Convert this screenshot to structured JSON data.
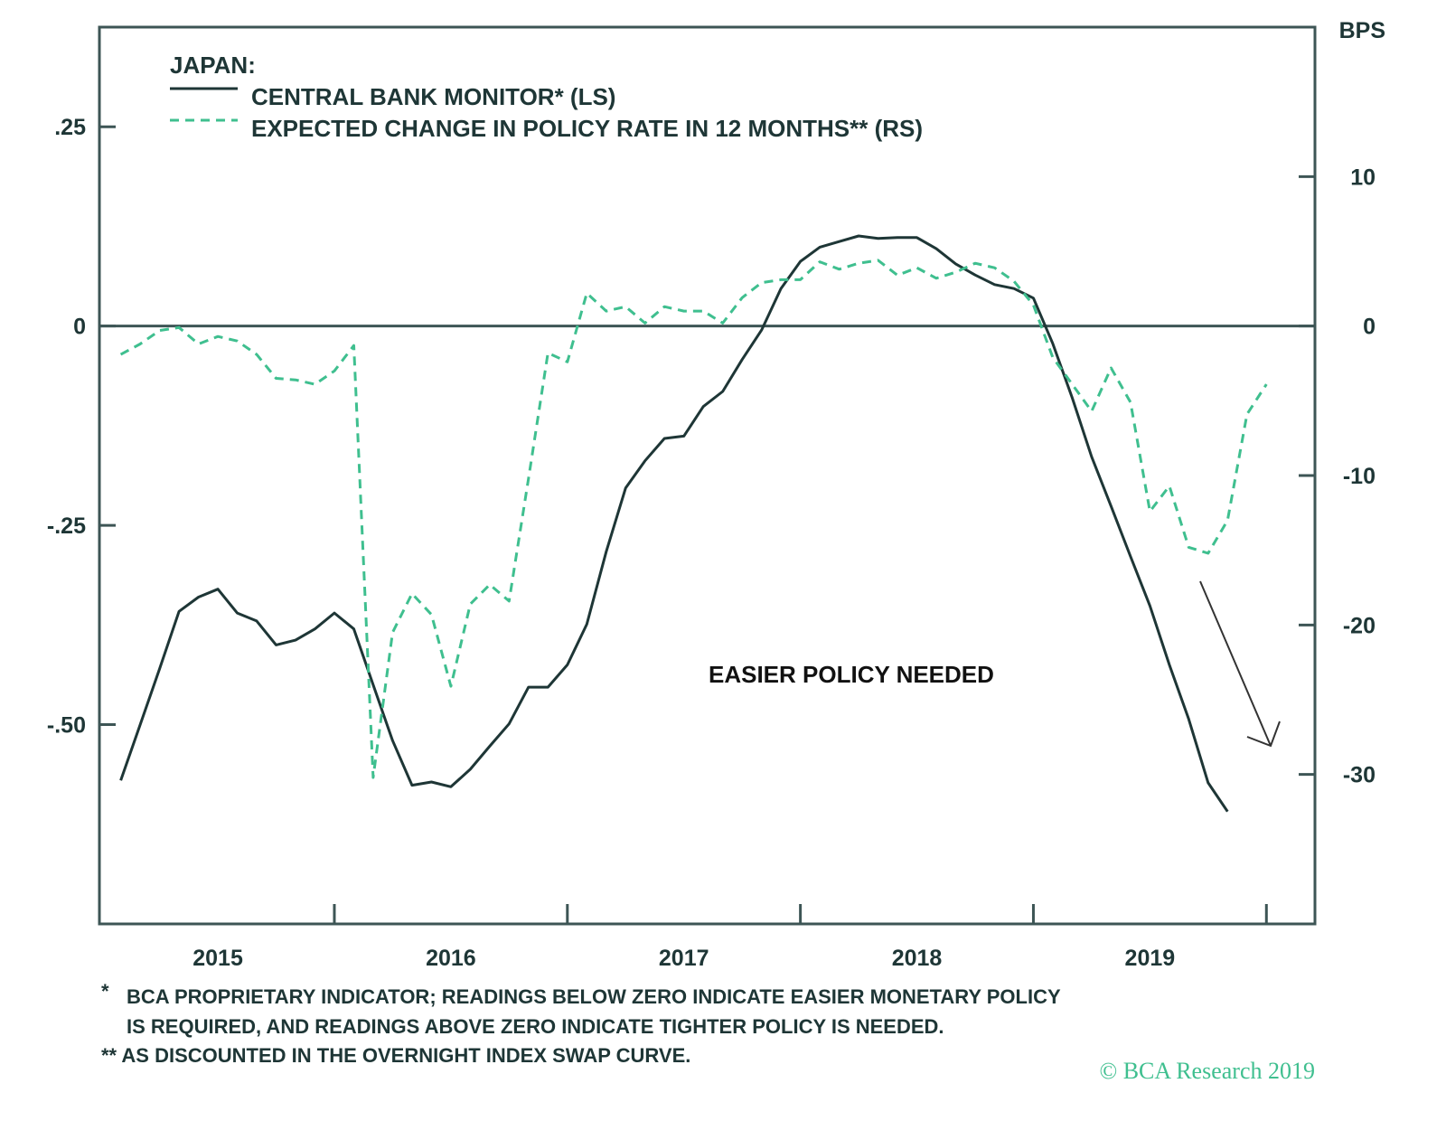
{
  "chart_data": {
    "type": "line",
    "legend_title": "JAPAN:",
    "legend_placement": "top-left",
    "right_axis_unit": "BPS",
    "annotation": "EASIER POLICY NEEDED",
    "x_tick_labels": [
      "2015",
      "2016",
      "2017",
      "2018",
      "2019"
    ],
    "left_axis": {
      "ticks": [
        0.25,
        0,
        -0.25,
        -0.5
      ],
      "tick_labels": [
        ".25",
        "0",
        "-.25",
        "-.50"
      ],
      "ylim": [
        -0.75,
        0.375
      ]
    },
    "right_axis": {
      "ticks": [
        10,
        0,
        -10,
        -20,
        -30
      ],
      "tick_labels": [
        "10",
        "0",
        "-10",
        "-20",
        "-30"
      ],
      "ylim": [
        -40,
        20
      ]
    },
    "xlim": [
      "2015-01",
      "2020-03"
    ],
    "grid": false,
    "zero_line": true,
    "x": [
      "2015-02",
      "2015-03",
      "2015-04",
      "2015-05",
      "2015-06",
      "2015-07",
      "2015-08",
      "2015-09",
      "2015-10",
      "2015-11",
      "2015-12",
      "2016-01",
      "2016-02",
      "2016-03",
      "2016-04",
      "2016-05",
      "2016-06",
      "2016-07",
      "2016-08",
      "2016-09",
      "2016-10",
      "2016-11",
      "2016-12",
      "2017-01",
      "2017-02",
      "2017-03",
      "2017-04",
      "2017-05",
      "2017-06",
      "2017-07",
      "2017-08",
      "2017-09",
      "2017-10",
      "2017-11",
      "2017-12",
      "2018-01",
      "2018-02",
      "2018-03",
      "2018-04",
      "2018-05",
      "2018-06",
      "2018-07",
      "2018-08",
      "2018-09",
      "2018-10",
      "2018-11",
      "2018-12",
      "2019-01",
      "2019-02",
      "2019-03",
      "2019-04",
      "2019-05",
      "2019-06",
      "2019-07",
      "2019-08",
      "2019-09",
      "2019-10",
      "2019-11",
      "2019-12",
      "2020-01"
    ],
    "series": [
      {
        "name": "CENTRAL BANK MONITOR* (LS)",
        "axis": "left",
        "style": "solid",
        "color": "#1e3636",
        "values": [
          -0.57,
          -0.5,
          -0.43,
          -0.358,
          -0.34,
          -0.33,
          -0.36,
          -0.37,
          -0.4,
          -0.394,
          -0.38,
          -0.36,
          -0.38,
          -0.45,
          -0.52,
          -0.576,
          -0.572,
          -0.578,
          -0.556,
          -0.527,
          -0.499,
          -0.453,
          -0.453,
          -0.425,
          -0.374,
          -0.283,
          -0.203,
          -0.169,
          -0.141,
          -0.138,
          -0.101,
          -0.082,
          -0.042,
          -0.005,
          0.047,
          0.081,
          0.099,
          0.106,
          0.113,
          0.11,
          0.111,
          0.111,
          0.097,
          0.078,
          0.064,
          0.052,
          0.047,
          0.035,
          -0.022,
          -0.09,
          -0.164,
          -0.226,
          -0.289,
          -0.351,
          -0.425,
          -0.493,
          -0.573,
          -0.609,
          null,
          null
        ]
      },
      {
        "name": "EXPECTED CHANGE IN POLICY RATE IN 12 MONTHS** (RS)",
        "axis": "right",
        "style": "dashed",
        "color": "#3fbf8f",
        "values": [
          -1.9,
          -1.2,
          -0.3,
          -0.1,
          -1.2,
          -0.7,
          -1.0,
          -1.9,
          -3.5,
          -3.6,
          -3.9,
          -3.0,
          -1.3,
          -30.2,
          -20.5,
          -17.9,
          -19.3,
          -24.1,
          -18.6,
          -17.3,
          -18.4,
          -10.2,
          -1.8,
          -2.4,
          2.2,
          1.0,
          1.3,
          0.2,
          1.3,
          1.0,
          1.0,
          0.2,
          1.9,
          2.9,
          3.1,
          3.1,
          4.3,
          3.8,
          4.2,
          4.4,
          3.4,
          3.9,
          3.2,
          3.6,
          4.2,
          3.9,
          3.0,
          1.4,
          -2.1,
          -3.9,
          -5.7,
          -2.8,
          -5.1,
          -12.4,
          -10.7,
          -14.8,
          -15.2,
          -13.0,
          -5.9,
          -3.9
        ]
      }
    ],
    "footnotes": [
      "*",
      "BCA PROPRIETARY INDICATOR; READINGS BELOW ZERO INDICATE EASIER MONETARY POLICY",
      "IS REQUIRED, AND READINGS ABOVE ZERO INDICATE TIGHTER POLICY IS NEEDED.",
      "** AS DISCOUNTED IN THE OVERNIGHT INDEX SWAP CURVE."
    ],
    "copyright": "© BCA Research 2019",
    "colors": {
      "axis": "#3d5555",
      "text": "#1e3636",
      "accent": "#3fbf8f"
    }
  }
}
